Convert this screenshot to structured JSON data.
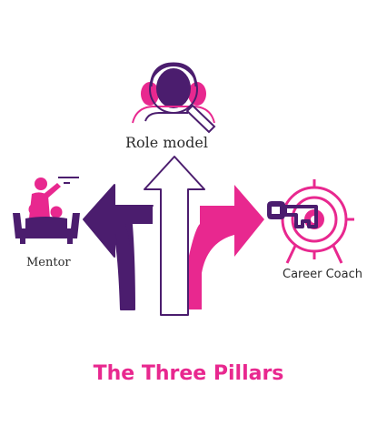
{
  "title": "The Three Pillars",
  "pillars": {
    "role_model": "Role model",
    "mentor": "Mentor",
    "career_coach": "Career Coach"
  },
  "colors": {
    "purple": "#4b1d6e",
    "pink": "#e8288f",
    "outline": "#4b1d6e",
    "text": "#2b2b2b"
  },
  "icons": {
    "role_model": "person-with-headset-and-magnifier-icon",
    "mentor": "mentor-teaching-student-icon",
    "career_coach": "key-and-target-icon"
  }
}
